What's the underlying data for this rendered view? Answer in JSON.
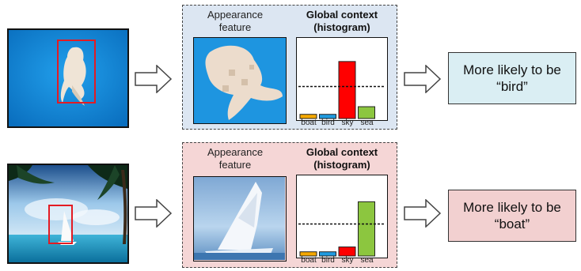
{
  "rows": [
    {
      "id": "bird",
      "panel_color": "#dce6f2",
      "appearance_label": "Appearance feature",
      "context_label": "Global context (histogram)",
      "result_line1": "More likely to be",
      "result_line2": "“bird”",
      "result_color": "#daeef3"
    },
    {
      "id": "boat",
      "panel_color": "#f5d6d6",
      "appearance_label": "Appearance feature",
      "context_label": "Global context (histogram)",
      "result_line1": "More likely to be",
      "result_line2": "“boat”",
      "result_color": "#f2d0d0"
    }
  ],
  "chart_data": [
    {
      "type": "bar",
      "categories": [
        "boat",
        "bird",
        "sky",
        "sea"
      ],
      "values": [
        0.06,
        0.06,
        0.82,
        0.17
      ],
      "colors": [
        "#f5a800",
        "#1f9be0",
        "#ff0000",
        "#8cc63f"
      ],
      "threshold": 0.46,
      "ylim": [
        0,
        1
      ]
    },
    {
      "type": "bar",
      "categories": [
        "boat",
        "bird",
        "sky",
        "sea"
      ],
      "values": [
        0.06,
        0.06,
        0.13,
        0.78
      ],
      "colors": [
        "#f5a800",
        "#1f9be0",
        "#ff0000",
        "#8cc63f"
      ],
      "threshold": 0.46,
      "ylim": [
        0,
        1
      ]
    }
  ]
}
